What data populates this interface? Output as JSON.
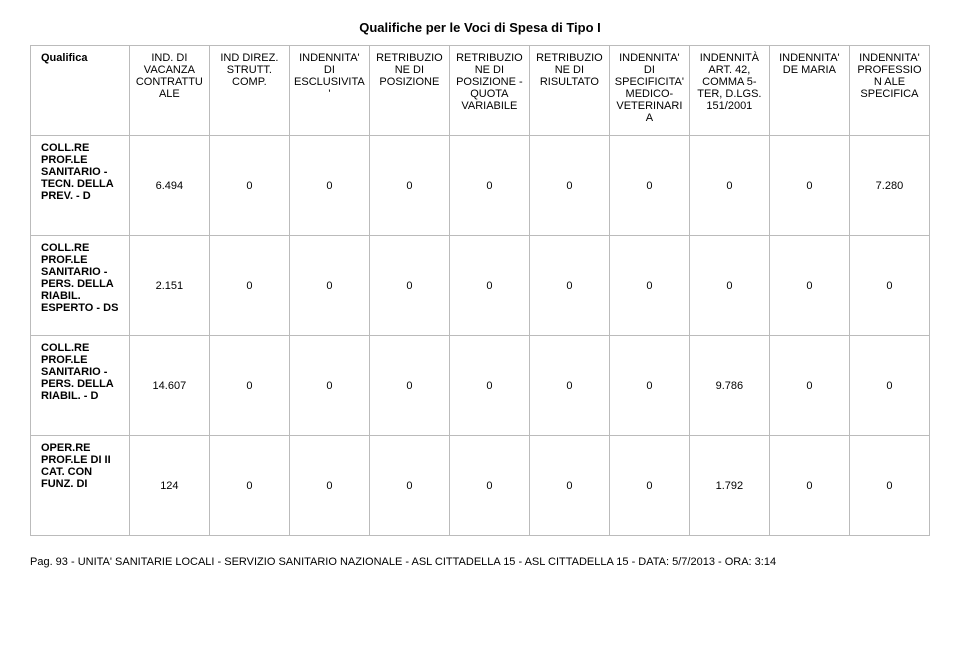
{
  "title": "Qualifiche per le Voci di Spesa di Tipo I",
  "columns": [
    "Qualifica",
    "IND. DI VACANZA CONTRATTU ALE",
    "IND DIREZ. STRUTT. COMP.",
    "INDENNITA' DI ESCLUSIVITA '",
    "RETRIBUZIO NE DI POSIZIONE",
    "RETRIBUZIO NE DI POSIZIONE - QUOTA VARIABILE",
    "RETRIBUZIO NE DI RISULTATO",
    "INDENNITA' DI SPECIFICITA' MEDICO- VETERINARIA",
    "INDENNITÀ ART. 42, COMMA 5-TER, D.LGS. 151/2001",
    "INDENNITA' DE MARIA",
    "INDENNITA' PROFESSION ALE SPECIFICA"
  ],
  "rows": [
    {
      "label": "COLL.RE PROF.LE SANITARIO - TECN. DELLA PREV. - D",
      "values": [
        "6.494",
        "0",
        "0",
        "0",
        "0",
        "0",
        "0",
        "0",
        "0",
        "7.280"
      ]
    },
    {
      "label": "COLL.RE PROF.LE SANITARIO - PERS. DELLA RIABIL. ESPERTO - DS",
      "values": [
        "2.151",
        "0",
        "0",
        "0",
        "0",
        "0",
        "0",
        "0",
        "0",
        "0"
      ]
    },
    {
      "label": "COLL.RE PROF.LE SANITARIO - PERS. DELLA RIABIL. - D",
      "values": [
        "14.607",
        "0",
        "0",
        "0",
        "0",
        "0",
        "0",
        "9.786",
        "0",
        "0"
      ]
    },
    {
      "label": "OPER.RE PROF.LE DI II CAT. CON FUNZ. DI",
      "values": [
        "124",
        "0",
        "0",
        "0",
        "0",
        "0",
        "0",
        "1.792",
        "0",
        "0"
      ]
    }
  ],
  "footer": "Pag. 93 - UNITA' SANITARIE LOCALI - SERVIZIO SANITARIO NAZIONALE - ASL CITTADELLA 15 - ASL CITTADELLA 15 - DATA: 5/7/2013 - ORA: 3:14",
  "col_widths": [
    "11%",
    "8.9%",
    "8.9%",
    "8.9%",
    "8.9%",
    "8.9%",
    "8.9%",
    "8.9%",
    "8.9%",
    "8.9%",
    "8.9%"
  ]
}
